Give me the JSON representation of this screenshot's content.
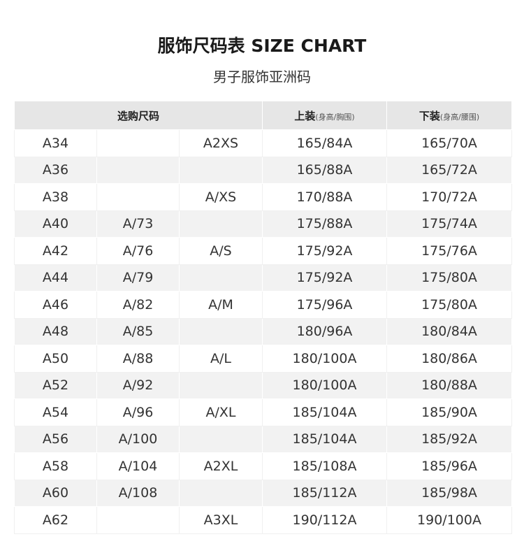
{
  "title": "服饰尺码表 SIZE CHART",
  "subtitle": "男子服饰亚洲码",
  "headers": {
    "size": "选购尺码",
    "top": "上装",
    "top_sub": "(身高/胸围)",
    "bottom": "下装",
    "bottom_sub": "(身高/腰围)"
  },
  "rows": [
    [
      "A34",
      "",
      "A2XS",
      "165/84A",
      "165/70A"
    ],
    [
      "A36",
      "",
      "",
      "165/88A",
      "165/72A"
    ],
    [
      "A38",
      "",
      "A/XS",
      "170/88A",
      "170/72A"
    ],
    [
      "A40",
      "A/73",
      "",
      "175/88A",
      "175/74A"
    ],
    [
      "A42",
      "A/76",
      "A/S",
      "175/92A",
      "175/76A"
    ],
    [
      "A44",
      "A/79",
      "",
      "175/92A",
      "175/80A"
    ],
    [
      "A46",
      "A/82",
      "A/M",
      "175/96A",
      "175/80A"
    ],
    [
      "A48",
      "A/85",
      "",
      "180/96A",
      "180/84A"
    ],
    [
      "A50",
      "A/88",
      "A/L",
      "180/100A",
      "180/86A"
    ],
    [
      "A52",
      "A/92",
      "",
      "180/100A",
      "180/88A"
    ],
    [
      "A54",
      "A/96",
      "A/XL",
      "185/104A",
      "185/90A"
    ],
    [
      "A56",
      "A/100",
      "",
      "185/104A",
      "185/92A"
    ],
    [
      "A58",
      "A/104",
      "A2XL",
      "185/108A",
      "185/96A"
    ],
    [
      "A60",
      "A/108",
      "",
      "185/112A",
      "185/98A"
    ],
    [
      "A62",
      "",
      "A3XL",
      "190/112A",
      "190/100A"
    ]
  ]
}
